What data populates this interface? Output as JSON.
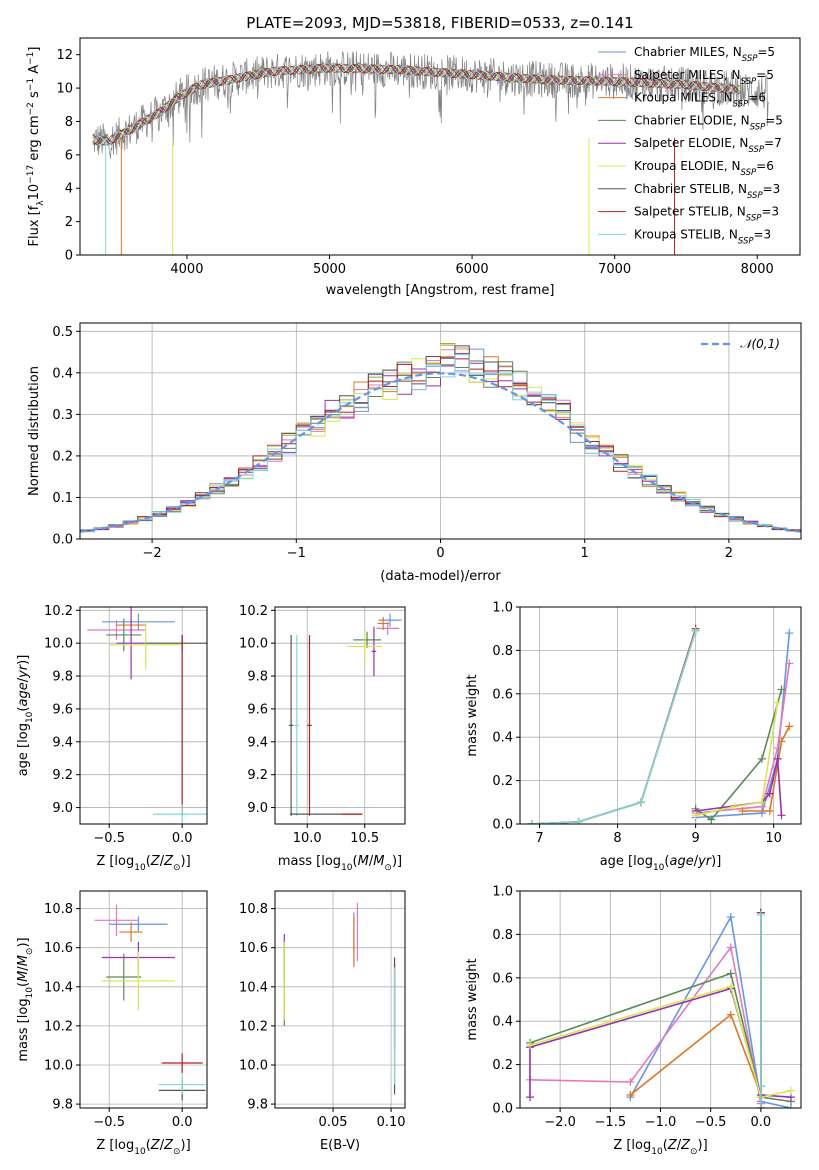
{
  "figure": {
    "title": "PLATE=2093, MJD=53818, FIBERID=0533, z=0.141"
  },
  "models": [
    {
      "name": "Chabrier MILES",
      "nssp": "5",
      "color": "#6495ed"
    },
    {
      "name": "Salpeter MILES",
      "nssp": "5",
      "color": "#e377c2"
    },
    {
      "name": "Kroupa MILES",
      "nssp": "6",
      "color": "#e07820"
    },
    {
      "name": "Chabrier ELODIE",
      "nssp": "5",
      "color": "#5b8a5b"
    },
    {
      "name": "Salpeter ELODIE",
      "nssp": "7",
      "color": "#9b30b0"
    },
    {
      "name": "Kroupa ELODIE",
      "nssp": "6",
      "color": "#d4e84d"
    },
    {
      "name": "Chabrier STELIB",
      "nssp": "3",
      "color": "#555555"
    },
    {
      "name": "Salpeter STELIB",
      "nssp": "3",
      "color": "#b22222"
    },
    {
      "name": "Kroupa STELIB",
      "nssp": "3",
      "color": "#7fd8d8"
    }
  ],
  "chart_data": [
    {
      "id": "spectrum",
      "type": "line",
      "xlabel": "wavelength [Angstrom, rest frame]",
      "ylabel": "Flux [f_λ 10^-17 erg cm^-2 s^-1 A^-1]",
      "xlim": [
        3250,
        8300
      ],
      "ylim": [
        0,
        13
      ],
      "xticks": [
        4000,
        5000,
        6000,
        7000,
        8000
      ],
      "yticks": [
        0,
        2,
        4,
        6,
        8,
        10,
        12
      ],
      "data_range": [
        3340,
        8080
      ],
      "approx_continuum": [
        [
          3340,
          6.9
        ],
        [
          3450,
          6.8
        ],
        [
          3600,
          7.5
        ],
        [
          3800,
          8.5
        ],
        [
          3950,
          9.5
        ],
        [
          4100,
          10.2
        ],
        [
          4300,
          10.5
        ],
        [
          4600,
          11.0
        ],
        [
          5000,
          11.2
        ],
        [
          5500,
          11.1
        ],
        [
          6000,
          10.8
        ],
        [
          6500,
          10.5
        ],
        [
          7000,
          10.4
        ],
        [
          7500,
          10.2
        ],
        [
          8000,
          9.8
        ],
        [
          8080,
          9.7
        ]
      ]
    },
    {
      "id": "residuals",
      "type": "step",
      "xlabel": "(data-model)/error",
      "ylabel": "Normed distribution",
      "xlim": [
        -2.5,
        2.5
      ],
      "ylim": [
        0,
        0.52
      ],
      "xticks": [
        -2,
        -1,
        0,
        1,
        2
      ],
      "yticks": [
        0,
        0.1,
        0.2,
        0.3,
        0.4,
        0.5
      ],
      "legend": "𝒩(0,1)",
      "bin_width": 0.1,
      "approx_hist_peak": 0.4
    },
    {
      "id": "age_vs_Z",
      "type": "errorbar",
      "xlabel": "Z [log10(Z/Z⊙)]",
      "ylabel": "age [log10(age/yr)]",
      "xlim": [
        -0.7,
        0.17
      ],
      "ylim": [
        8.9,
        10.22
      ],
      "xticks": [
        -0.5,
        0.0
      ],
      "yticks": [
        9.0,
        9.2,
        9.4,
        9.6,
        9.8,
        10.0,
        10.2
      ],
      "points": [
        {
          "m": 0,
          "x": -0.3,
          "y": 10.13,
          "xe": 0.25,
          "ye": 0.05
        },
        {
          "m": 1,
          "x": -0.45,
          "y": 10.08,
          "xe": 0.2,
          "ye": 0.06
        },
        {
          "m": 2,
          "x": -0.35,
          "y": 10.11,
          "xe": 0.1,
          "ye": 0.04
        },
        {
          "m": 3,
          "x": -0.4,
          "y": 10.05,
          "xe": 0.12,
          "ye": 0.1
        },
        {
          "m": 4,
          "x": -0.35,
          "y": 10.0,
          "xe": 0.1,
          "ye": 0.22
        },
        {
          "m": 5,
          "x": -0.25,
          "y": 9.99,
          "xe": 0.25,
          "ye": 0.15
        },
        {
          "m": 6,
          "x": 0.0,
          "y": 10.0,
          "xe": 0.25,
          "ye": 0.05
        },
        {
          "m": 7,
          "x": 0.0,
          "y": 9.5,
          "xe": 0.0,
          "ye": 0.55
        },
        {
          "m": 8,
          "x": 0.0,
          "y": 8.96,
          "xe": 0.2,
          "ye": 0.06
        }
      ]
    },
    {
      "id": "age_vs_mass",
      "type": "errorbar",
      "xlabel": "mass [log10(M/M⊙)]",
      "ylabel": "",
      "xlim": [
        9.72,
        10.85
      ],
      "ylim": [
        8.9,
        10.22
      ],
      "xticks": [
        10.0,
        10.5
      ],
      "yticks": [
        9.0,
        9.2,
        9.4,
        9.6,
        9.8,
        10.0,
        10.2
      ],
      "points": [
        {
          "m": 0,
          "x": 10.72,
          "y": 10.14,
          "xe": 0.1,
          "ye": 0.04
        },
        {
          "m": 1,
          "x": 10.7,
          "y": 10.09,
          "xe": 0.1,
          "ye": 0.04
        },
        {
          "m": 2,
          "x": 10.66,
          "y": 10.12,
          "xe": 0.05,
          "ye": 0.04
        },
        {
          "m": 3,
          "x": 10.52,
          "y": 10.02,
          "xe": 0.12,
          "ye": 0.05
        },
        {
          "m": 4,
          "x": 10.58,
          "y": 9.95,
          "xe": 0.02,
          "ye": 0.15
        },
        {
          "m": 5,
          "x": 10.5,
          "y": 9.98,
          "xe": 0.15,
          "ye": 0.1
        },
        {
          "m": 6,
          "x": 9.86,
          "y": 9.5,
          "xe": 0.02,
          "ye": 0.55
        },
        {
          "m": 7,
          "x": 10.02,
          "y": 9.5,
          "xe": 0.02,
          "ye": 0.55
        },
        {
          "m": 8,
          "x": 9.91,
          "y": 9.5,
          "xe": 0.02,
          "ye": 0.55
        }
      ],
      "stelib_hbars": [
        [
          9.85,
          10.48,
          8.96
        ]
      ]
    },
    {
      "id": "massweight_vs_age",
      "type": "line",
      "xlabel": "age [log10(age/yr)]",
      "ylabel": "mass weight",
      "xlim": [
        6.75,
        10.35
      ],
      "ylim": [
        0,
        1.0
      ],
      "xticks": [
        7,
        8,
        9,
        10
      ],
      "yticks": [
        0,
        0.2,
        0.4,
        0.6,
        0.8,
        1.0
      ],
      "series": [
        {
          "m": 0,
          "x": [
            9.0,
            9.85,
            10.05,
            10.2
          ],
          "y": [
            0.03,
            0.05,
            0.3,
            0.88
          ]
        },
        {
          "m": 1,
          "x": [
            9.0,
            9.85,
            10.05,
            10.2
          ],
          "y": [
            0.05,
            0.08,
            0.35,
            0.74
          ]
        },
        {
          "m": 2,
          "x": [
            9.6,
            9.95,
            10.1,
            10.2
          ],
          "y": [
            0.06,
            0.06,
            0.38,
            0.45
          ]
        },
        {
          "m": 3,
          "x": [
            9.0,
            9.2,
            9.85,
            10.1
          ],
          "y": [
            0.07,
            0.02,
            0.3,
            0.62
          ]
        },
        {
          "m": 4,
          "x": [
            9.0,
            9.85,
            9.95,
            10.05,
            10.1
          ],
          "y": [
            0.06,
            0.1,
            0.14,
            0.3,
            0.04
          ]
        },
        {
          "m": 5,
          "x": [
            9.0,
            9.5,
            9.85,
            10.05
          ],
          "y": [
            0.04,
            0.08,
            0.1,
            0.56
          ]
        },
        {
          "m": 6,
          "x": [
            6.9,
            7.5,
            8.3,
            9.0
          ],
          "y": [
            0.0,
            0.01,
            0.1,
            0.89
          ]
        },
        {
          "m": 7,
          "x": [
            6.9,
            7.5,
            8.3,
            9.0
          ],
          "y": [
            0.0,
            0.01,
            0.1,
            0.9
          ]
        },
        {
          "m": 8,
          "x": [
            6.9,
            7.5,
            8.3,
            9.0
          ],
          "y": [
            0.0,
            0.01,
            0.1,
            0.89
          ]
        }
      ]
    },
    {
      "id": "mass_vs_Z",
      "type": "errorbar",
      "xlabel": "Z [log10(Z/Z⊙)]",
      "ylabel": "mass [log10(M/M⊙)]",
      "xlim": [
        -0.7,
        0.17
      ],
      "ylim": [
        9.78,
        10.89
      ],
      "xticks": [
        -0.5,
        0.0
      ],
      "yticks": [
        9.8,
        10.0,
        10.2,
        10.4,
        10.6,
        10.8
      ],
      "points": [
        {
          "m": 0,
          "x": -0.3,
          "y": 10.72,
          "xe": 0.2,
          "ye": 0.04
        },
        {
          "m": 1,
          "x": -0.45,
          "y": 10.74,
          "xe": 0.15,
          "ye": 0.08
        },
        {
          "m": 2,
          "x": -0.35,
          "y": 10.68,
          "xe": 0.08,
          "ye": 0.05
        },
        {
          "m": 3,
          "x": -0.4,
          "y": 10.45,
          "xe": 0.12,
          "ye": 0.12
        },
        {
          "m": 4,
          "x": -0.3,
          "y": 10.55,
          "xe": 0.25,
          "ye": 0.08
        },
        {
          "m": 5,
          "x": -0.3,
          "y": 10.43,
          "xe": 0.25,
          "ye": 0.15
        },
        {
          "m": 6,
          "x": 0.0,
          "y": 9.87,
          "xe": 0.16,
          "ye": 0.05
        },
        {
          "m": 7,
          "x": 0.0,
          "y": 10.01,
          "xe": 0.14,
          "ye": 0.05
        },
        {
          "m": 8,
          "x": 0.0,
          "y": 9.9,
          "xe": 0.16,
          "ye": 0.05
        }
      ]
    },
    {
      "id": "mass_vs_ebv",
      "type": "errorbar",
      "xlabel": "E(B-V)",
      "ylabel": "",
      "xlim": [
        0.0,
        0.112
      ],
      "ylim": [
        9.78,
        10.89
      ],
      "xticks": [
        0.05,
        0.1
      ],
      "yticks": [
        9.8,
        10.0,
        10.2,
        10.4,
        10.6,
        10.8
      ],
      "points": [
        {
          "m": 0,
          "x": 0.068,
          "y": 10.68,
          "xe": 0.0,
          "ye": 0.1
        },
        {
          "m": 1,
          "x": 0.071,
          "y": 10.68,
          "xe": 0.0,
          "ye": 0.15
        },
        {
          "m": 2,
          "x": 0.068,
          "y": 10.63,
          "xe": 0.0,
          "ye": 0.13
        },
        {
          "m": 3,
          "x": 0.008,
          "y": 10.4,
          "xe": 0.0,
          "ye": 0.2
        },
        {
          "m": 4,
          "x": 0.008,
          "y": 10.55,
          "xe": 0.0,
          "ye": 0.12
        },
        {
          "m": 5,
          "x": 0.008,
          "y": 10.43,
          "xe": 0.0,
          "ye": 0.2
        },
        {
          "m": 6,
          "x": 0.103,
          "y": 10.2,
          "xe": 0.0,
          "ye": 0.35
        },
        {
          "m": 7,
          "x": 0.103,
          "y": 10.3,
          "xe": 0.0,
          "ye": 0.22
        },
        {
          "m": 8,
          "x": 0.103,
          "y": 10.2,
          "xe": 0.0,
          "ye": 0.3
        }
      ]
    },
    {
      "id": "massweight_vs_Z",
      "type": "line",
      "xlabel": "Z [log10(Z/Z⊙)]",
      "ylabel": "mass weight",
      "xlim": [
        -2.4,
        0.4
      ],
      "ylim": [
        0,
        1.0
      ],
      "xticks": [
        -2.0,
        -1.5,
        -1.0,
        -0.5,
        0.0
      ],
      "yticks": [
        0,
        0.2,
        0.4,
        0.6,
        0.8,
        1.0
      ],
      "series": [
        {
          "m": 0,
          "x": [
            -1.3,
            -0.3,
            0.0,
            0.3
          ],
          "y": [
            0.05,
            0.88,
            0.03,
            0.0
          ]
        },
        {
          "m": 1,
          "x": [
            -2.3,
            -1.3,
            -0.3,
            0.0
          ],
          "y": [
            0.13,
            0.12,
            0.74,
            0.02
          ]
        },
        {
          "m": 2,
          "x": [
            -1.3,
            -0.3,
            0.0
          ],
          "y": [
            0.06,
            0.43,
            0.06
          ]
        },
        {
          "m": 3,
          "x": [
            -2.3,
            -0.3,
            0.0,
            0.3
          ],
          "y": [
            0.3,
            0.62,
            0.05,
            0.03
          ]
        },
        {
          "m": 4,
          "x": [
            -2.3,
            -2.3,
            -0.3,
            0.0,
            0.3
          ],
          "y": [
            0.05,
            0.28,
            0.55,
            0.06,
            0.05
          ]
        },
        {
          "m": 5,
          "x": [
            -2.3,
            -0.3,
            0.0,
            0.3
          ],
          "y": [
            0.29,
            0.56,
            0.05,
            0.08
          ]
        },
        {
          "m": 6,
          "x": [
            0.0,
            0.0,
            0.0
          ],
          "y": [
            0.0,
            0.1,
            0.9
          ]
        },
        {
          "m": 7,
          "x": [
            0.0,
            0.0
          ],
          "y": [
            0.0,
            0.9
          ]
        },
        {
          "m": 8,
          "x": [
            0.0,
            0.0,
            0.0
          ],
          "y": [
            0.0,
            0.1,
            0.89
          ]
        }
      ]
    }
  ]
}
